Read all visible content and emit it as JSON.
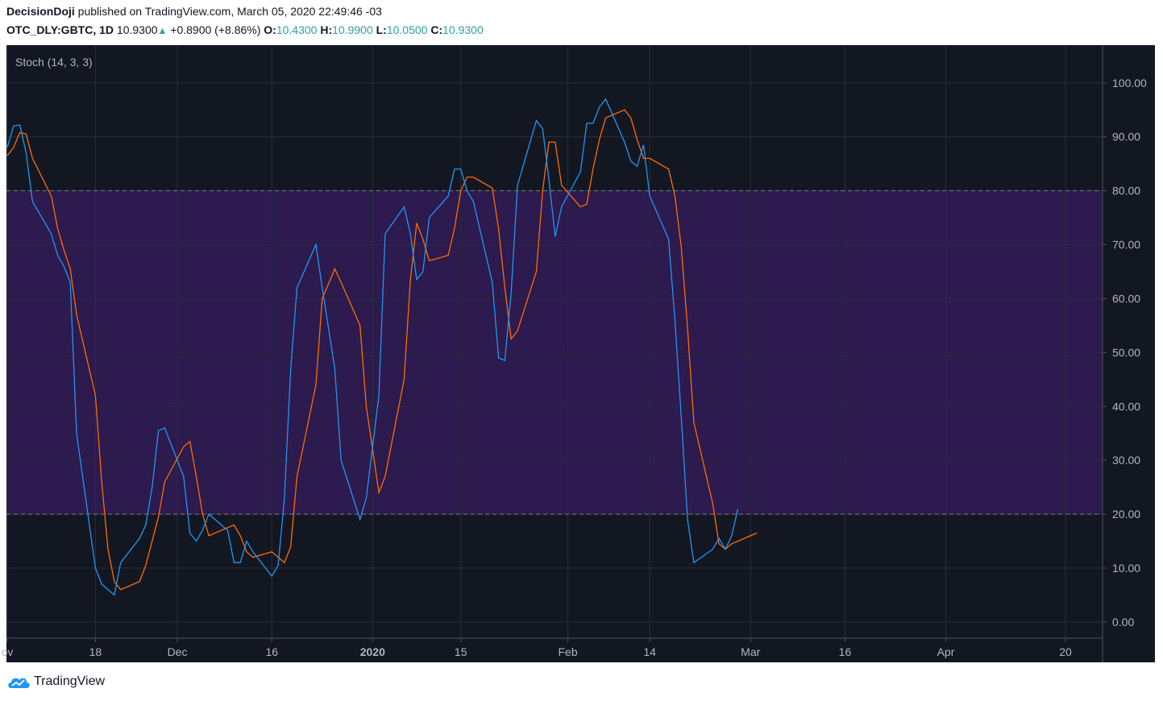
{
  "header": {
    "author": "DecisionDoji",
    "published_text": " published on TradingView.com, March 05, 2020 22:49:46 -03",
    "symbol": "OTC_DLY:GBTC, 1D",
    "last": "10.9300",
    "arrow": "▲",
    "change": "+0.8900 (+8.86%)",
    "o_label": "O:",
    "o_value": "10.4300",
    "h_label": "H:",
    "h_value": "10.9900",
    "l_label": "L:",
    "l_value": "10.0500",
    "c_label": "C:",
    "c_value": "10.9300"
  },
  "logo": {
    "text": "TradingView",
    "icon": "tradingview-cloud-icon"
  },
  "colors": {
    "background": "#131722",
    "band": "#2d1a4e",
    "grid": "#2a2e39",
    "k_line": "#2196f3",
    "d_line": "#ff6d00",
    "text": "#b2b5be",
    "header_text": "#131722",
    "value_up": "#26a69a"
  },
  "chart_data": {
    "type": "line",
    "title": "Stoch (14, 3, 3)",
    "ylim": [
      -3,
      107
    ],
    "yticks": [
      0,
      10,
      20,
      30,
      40,
      50,
      60,
      70,
      80,
      90,
      100
    ],
    "ytick_labels": [
      "0.00",
      "10.00",
      "20.00",
      "30.00",
      "40.00",
      "50.00",
      "60.00",
      "70.00",
      "80.00",
      "90.00",
      "100.00"
    ],
    "band": {
      "upper": 80,
      "lower": 20
    },
    "grid": true,
    "xticks": [
      {
        "date": "2019-11-04",
        "label": "ov",
        "bold": false
      },
      {
        "date": "2019-11-18",
        "label": "18",
        "bold": false
      },
      {
        "date": "2019-12-01",
        "label": "Dec",
        "bold": false
      },
      {
        "date": "2019-12-16",
        "label": "16",
        "bold": false
      },
      {
        "date": "2020-01-01",
        "label": "2020",
        "bold": true
      },
      {
        "date": "2020-01-15",
        "label": "15",
        "bold": false
      },
      {
        "date": "2020-02-01",
        "label": "Feb",
        "bold": false
      },
      {
        "date": "2020-02-14",
        "label": "14",
        "bold": false
      },
      {
        "date": "2020-03-01",
        "label": "Mar",
        "bold": false
      },
      {
        "date": "2020-03-16",
        "label": "16",
        "bold": false
      },
      {
        "date": "2020-04-01",
        "label": "Apr",
        "bold": false
      },
      {
        "date": "2020-04-20",
        "label": "20",
        "bold": false
      }
    ],
    "series": [
      {
        "key": "k",
        "points": [
          [
            "2019-11-04",
            88
          ],
          [
            "2019-11-05",
            92
          ],
          [
            "2019-11-06",
            92.2
          ],
          [
            "2019-11-07",
            87
          ],
          [
            "2019-11-08",
            78
          ],
          [
            "2019-11-11",
            72
          ],
          [
            "2019-11-12",
            68
          ],
          [
            "2019-11-13",
            66
          ],
          [
            "2019-11-14",
            63
          ],
          [
            "2019-11-15",
            35
          ],
          [
            "2019-11-18",
            10
          ],
          [
            "2019-11-19",
            7
          ],
          [
            "2019-11-20",
            6
          ],
          [
            "2019-11-21",
            5
          ],
          [
            "2019-11-22",
            11
          ],
          [
            "2019-11-25",
            15.5
          ],
          [
            "2019-11-26",
            18
          ],
          [
            "2019-11-27",
            25
          ],
          [
            "2019-11-28",
            35.5
          ],
          [
            "2019-11-29",
            36
          ],
          [
            "2019-12-02",
            27
          ],
          [
            "2019-12-03",
            16.5
          ],
          [
            "2019-12-04",
            15
          ],
          [
            "2019-12-05",
            17
          ],
          [
            "2019-12-06",
            20
          ],
          [
            "2019-12-09",
            17
          ],
          [
            "2019-12-10",
            11
          ],
          [
            "2019-12-11",
            11
          ],
          [
            "2019-12-12",
            15
          ],
          [
            "2019-12-13",
            13
          ],
          [
            "2019-12-16",
            8.5
          ],
          [
            "2019-12-17",
            10.5
          ],
          [
            "2019-12-18",
            23
          ],
          [
            "2019-12-19",
            47
          ],
          [
            "2019-12-20",
            62
          ],
          [
            "2019-12-23",
            70
          ],
          [
            "2019-12-24",
            62
          ],
          [
            "2019-12-26",
            47
          ],
          [
            "2019-12-27",
            30
          ],
          [
            "2019-12-30",
            19
          ],
          [
            "2019-12-31",
            23
          ],
          [
            "2020-01-02",
            42
          ],
          [
            "2020-01-03",
            72
          ],
          [
            "2020-01-06",
            77
          ],
          [
            "2020-01-07",
            72
          ],
          [
            "2020-01-08",
            63.5
          ],
          [
            "2020-01-09",
            65
          ],
          [
            "2020-01-10",
            75
          ],
          [
            "2020-01-13",
            79
          ],
          [
            "2020-01-14",
            84
          ],
          [
            "2020-01-15",
            84
          ],
          [
            "2020-01-16",
            80
          ],
          [
            "2020-01-17",
            78
          ],
          [
            "2020-01-20",
            63
          ],
          [
            "2020-01-21",
            49
          ],
          [
            "2020-01-22",
            48.5
          ],
          [
            "2020-01-23",
            61
          ],
          [
            "2020-01-24",
            81
          ],
          [
            "2020-01-27",
            93
          ],
          [
            "2020-01-28",
            91.5
          ],
          [
            "2020-01-29",
            82
          ],
          [
            "2020-01-30",
            71.5
          ],
          [
            "2020-01-31",
            77
          ],
          [
            "2020-02-03",
            83.5
          ],
          [
            "2020-02-04",
            92.5
          ],
          [
            "2020-02-05",
            92.5
          ],
          [
            "2020-02-06",
            95.5
          ],
          [
            "2020-02-07",
            97
          ],
          [
            "2020-02-10",
            89
          ],
          [
            "2020-02-11",
            85.5
          ],
          [
            "2020-02-12",
            84.5
          ],
          [
            "2020-02-13",
            88.5
          ],
          [
            "2020-02-14",
            79
          ],
          [
            "2020-02-17",
            71
          ],
          [
            "2020-02-18",
            56
          ],
          [
            "2020-02-19",
            38
          ],
          [
            "2020-02-20",
            19
          ],
          [
            "2020-02-21",
            11
          ],
          [
            "2020-02-24",
            13.5
          ],
          [
            "2020-02-25",
            15.5
          ],
          [
            "2020-02-26",
            13.5
          ],
          [
            "2020-02-27",
            16
          ],
          [
            "2020-02-28",
            21
          ]
        ]
      },
      {
        "key": "d",
        "points": [
          [
            "2019-11-04",
            86.5
          ],
          [
            "2019-11-05",
            88
          ],
          [
            "2019-11-06",
            90.8
          ],
          [
            "2019-11-07",
            90.5
          ],
          [
            "2019-11-08",
            86
          ],
          [
            "2019-11-11",
            79
          ],
          [
            "2019-11-12",
            73
          ],
          [
            "2019-11-13",
            69
          ],
          [
            "2019-11-14",
            65.5
          ],
          [
            "2019-11-15",
            57
          ],
          [
            "2019-11-18",
            42
          ],
          [
            "2019-11-19",
            26
          ],
          [
            "2019-11-20",
            13.5
          ],
          [
            "2019-11-21",
            7.5
          ],
          [
            "2019-11-22",
            6
          ],
          [
            "2019-11-25",
            7.5
          ],
          [
            "2019-11-26",
            10.5
          ],
          [
            "2019-11-27",
            15
          ],
          [
            "2019-11-28",
            19.5
          ],
          [
            "2019-11-29",
            26
          ],
          [
            "2019-12-02",
            32.5
          ],
          [
            "2019-12-03",
            33.5
          ],
          [
            "2019-12-04",
            27
          ],
          [
            "2019-12-05",
            20
          ],
          [
            "2019-12-06",
            16
          ],
          [
            "2019-12-09",
            17.5
          ],
          [
            "2019-12-10",
            18
          ],
          [
            "2019-12-11",
            16
          ],
          [
            "2019-12-12",
            13
          ],
          [
            "2019-12-13",
            12
          ],
          [
            "2019-12-16",
            13
          ],
          [
            "2019-12-17",
            12
          ],
          [
            "2019-12-18",
            11
          ],
          [
            "2019-12-19",
            14
          ],
          [
            "2019-12-20",
            27
          ],
          [
            "2019-12-23",
            44
          ],
          [
            "2019-12-24",
            60
          ],
          [
            "2019-12-26",
            65.5
          ],
          [
            "2019-12-27",
            63
          ],
          [
            "2019-12-30",
            55
          ],
          [
            "2019-12-31",
            40
          ],
          [
            "2020-01-02",
            24
          ],
          [
            "2020-01-03",
            27
          ],
          [
            "2020-01-06",
            45
          ],
          [
            "2020-01-07",
            63.5
          ],
          [
            "2020-01-08",
            74
          ],
          [
            "2020-01-09",
            71
          ],
          [
            "2020-01-10",
            67
          ],
          [
            "2020-01-13",
            68
          ],
          [
            "2020-01-14",
            73
          ],
          [
            "2020-01-15",
            80
          ],
          [
            "2020-01-16",
            82.5
          ],
          [
            "2020-01-17",
            82.5
          ],
          [
            "2020-01-20",
            80.5
          ],
          [
            "2020-01-21",
            73
          ],
          [
            "2020-01-22",
            62
          ],
          [
            "2020-01-23",
            52.5
          ],
          [
            "2020-01-24",
            54
          ],
          [
            "2020-01-27",
            65
          ],
          [
            "2020-01-28",
            80
          ],
          [
            "2020-01-29",
            89
          ],
          [
            "2020-01-30",
            89
          ],
          [
            "2020-01-31",
            81
          ],
          [
            "2020-02-03",
            77
          ],
          [
            "2020-02-04",
            77.5
          ],
          [
            "2020-02-05",
            84
          ],
          [
            "2020-02-06",
            89.5
          ],
          [
            "2020-02-07",
            93.5
          ],
          [
            "2020-02-10",
            95
          ],
          [
            "2020-02-11",
            93.5
          ],
          [
            "2020-02-12",
            89.5
          ],
          [
            "2020-02-13",
            86
          ],
          [
            "2020-02-14",
            86
          ],
          [
            "2020-02-17",
            84
          ],
          [
            "2020-02-18",
            79
          ],
          [
            "2020-02-19",
            69.5
          ],
          [
            "2020-02-20",
            54.5
          ],
          [
            "2020-02-21",
            37
          ],
          [
            "2020-02-24",
            22
          ],
          [
            "2020-02-25",
            14.5
          ],
          [
            "2020-02-26",
            13.5
          ],
          [
            "2020-02-27",
            14.5
          ],
          [
            "2020-02-28",
            15
          ],
          [
            "2020-03-02",
            16.5
          ]
        ]
      }
    ]
  }
}
